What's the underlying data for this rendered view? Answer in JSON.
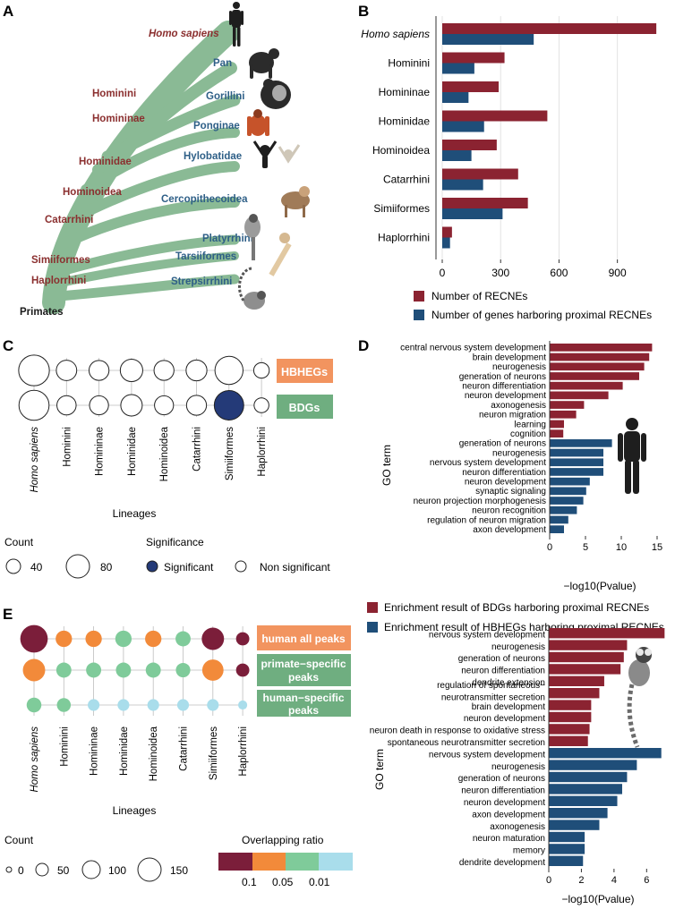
{
  "colors": {
    "recne": "#8B2331",
    "genes": "#1F4E79",
    "tree": "#7EB38A",
    "tree_label_red": "#8B2F2F",
    "tree_label_blue": "#2E5F87",
    "hbhegs": "#F2945F",
    "bdgs": "#6FAE80",
    "sig": "#243A78",
    "ratio_0_1": "#7B1E3A",
    "ratio_0_05": "#F28A3A",
    "ratio_0_01": "#7FCB9A",
    "ratio_low": "#A9DDEB",
    "human_peaks": "#F2945F",
    "primate_peaks": "#6FAE80",
    "humanspec_peaks": "#6FAE80"
  },
  "panel_labels": {
    "a": "A",
    "b": "B",
    "c": "C",
    "d": "D",
    "e": "E"
  },
  "tree": {
    "root": "Primates",
    "internal": [
      "Homo sapiens",
      "Hominini",
      "Homininae",
      "Hominidae",
      "Hominoidea",
      "Catarrhini",
      "Simiiformes",
      "Haplorrhini"
    ],
    "tips": [
      "Pan",
      "Gorillini",
      "Ponginae",
      "Hylobatidae",
      "Cercopithecoidea",
      "Platyrrhini",
      "Tarsiiformes",
      "Strepsirrhini"
    ]
  },
  "chart_data": [
    {
      "id": "B",
      "type": "bar",
      "orientation": "horizontal",
      "categories": [
        "Homo sapiens",
        "Hominini",
        "Homininae",
        "Hominidae",
        "Hominoidea",
        "Catarrhini",
        "Simiiformes",
        "Haplorrhini"
      ],
      "series": [
        {
          "name": "Number of RECNEs",
          "values": [
            1100,
            320,
            290,
            540,
            280,
            390,
            440,
            50
          ]
        },
        {
          "name": "Number of genes harboring proximal RECNEs",
          "values": [
            470,
            165,
            135,
            215,
            150,
            210,
            310,
            40
          ]
        }
      ],
      "xticks": [
        "0",
        "300",
        "600",
        "900"
      ],
      "xlim": [
        0,
        1150
      ]
    },
    {
      "id": "C",
      "type": "scatter",
      "subtype": "dot-matrix",
      "categories": [
        "Homo sapiens",
        "Hominini",
        "Homininae",
        "Hominidae",
        "Hominoidea",
        "Catarrhini",
        "Simiiformes",
        "Haplorrhini"
      ],
      "rows": [
        "HBHEGs",
        "BDGs"
      ],
      "counts": [
        [
          95,
          30,
          28,
          40,
          28,
          32,
          75,
          12
        ],
        [
          90,
          25,
          24,
          35,
          24,
          28,
          85,
          10
        ]
      ],
      "significant": [
        [
          false,
          false,
          false,
          false,
          false,
          false,
          false,
          false
        ],
        [
          false,
          false,
          false,
          false,
          false,
          false,
          true,
          false
        ]
      ],
      "xlabel": "Lineages",
      "legend": {
        "count_title": "Count",
        "count_values": [
          "40",
          "80"
        ],
        "sig_title": "Significance",
        "sig_labels": [
          "Significant",
          "Non significant"
        ]
      }
    },
    {
      "id": "D",
      "type": "bar",
      "orientation": "horizontal",
      "groups": [
        {
          "name": "Enrichment result of BDGs harboring proximal RECNEs",
          "terms": [
            "central nervous system development",
            "brain development",
            "neurogenesis",
            "generation of neurons",
            "neuron differentiation",
            "neuron development",
            "axonogenesis",
            "neuron migration",
            "learning",
            "cognition"
          ],
          "values": [
            14.3,
            13.9,
            13.2,
            12.5,
            10.2,
            8.2,
            4.8,
            3.7,
            2.0,
            1.9
          ]
        },
        {
          "name": "Enrichment result of HBHEGs harboring proximal RECNEs",
          "terms": [
            "generation of neurons",
            "neurogenesis",
            "nervous system development",
            "neuron differentiation",
            "neuron development",
            "synaptic signaling",
            "neuron projection morphogenesis",
            "neuron recognition",
            "regulation of neuron migration",
            "axon development"
          ],
          "values": [
            8.7,
            7.5,
            7.5,
            7.5,
            5.6,
            5.1,
            4.7,
            3.8,
            2.6,
            2.0
          ]
        }
      ],
      "xticks": [
        "0",
        "5",
        "10",
        "15"
      ],
      "xlim": [
        0,
        15.5
      ],
      "xlabel": "−log10(Pvalue)",
      "ylabel": "GO term"
    },
    {
      "id": "E",
      "type": "scatter",
      "subtype": "dot-matrix",
      "categories": [
        "Homo sapiens",
        "Hominini",
        "Homininae",
        "Hominidae",
        "Hominoidea",
        "Catarrhini",
        "Simiiformes",
        "Haplorrhini"
      ],
      "rows": [
        "human all peaks",
        "primate−specific peaks",
        "human−specific peaks"
      ],
      "counts": [
        [
          150,
          40,
          40,
          40,
          40,
          32,
          90,
          22
        ],
        [
          90,
          32,
          32,
          32,
          32,
          28,
          80,
          22
        ],
        [
          30,
          25,
          15,
          15,
          15,
          15,
          15,
          6
        ]
      ],
      "ratio_class": [
        [
          "0.1",
          "0.05",
          "0.05",
          "0.01",
          "0.05",
          "0.01",
          "0.1",
          "0.1"
        ],
        [
          "0.05",
          "0.01",
          "0.01",
          "0.01",
          "0.01",
          "0.01",
          "0.05",
          "0.1"
        ],
        [
          "0.01",
          "0.01",
          "low",
          "low",
          "low",
          "low",
          "low",
          "low"
        ]
      ],
      "xlabel": "Lineages",
      "legend": {
        "count_title": "Count",
        "count_values": [
          "0",
          "50",
          "100",
          "150"
        ],
        "ratio_title": "Overlapping ratio",
        "ratio_ticks": [
          "0.1",
          "0.05",
          "0.01"
        ]
      }
    },
    {
      "id": "E_right",
      "type": "bar",
      "orientation": "horizontal",
      "groups": [
        {
          "name": "BDGs",
          "terms": [
            "nervous system development",
            "neurogenesis",
            "generation of neurons",
            "neuron differentiation",
            "dendrite extension",
            "regulation of spontaneous−\nneurotransmitter secretion",
            "brain development",
            "neuron development",
            "neuron death in response to oxidative stress",
            "spontaneous neurotransmitter secretion"
          ],
          "values": [
            7.1,
            4.8,
            4.6,
            4.4,
            3.4,
            3.1,
            2.6,
            2.6,
            2.5,
            2.4
          ]
        },
        {
          "name": "HBHEGs",
          "terms": [
            "nervous system development",
            "neurogenesis",
            "generation of neurons",
            "neuron differentiation",
            "neuron development",
            "axon development",
            "axonogenesis",
            "neuron maturation",
            "memory",
            "dendrite development"
          ],
          "values": [
            6.9,
            5.4,
            4.8,
            4.5,
            4.2,
            3.6,
            3.1,
            2.2,
            2.2,
            2.1
          ]
        }
      ],
      "xticks": [
        "0",
        "2",
        "4",
        "6"
      ],
      "xlim": [
        0,
        7.3
      ],
      "xlabel": "−log10(Pvalue)",
      "ylabel": "GO term"
    }
  ]
}
